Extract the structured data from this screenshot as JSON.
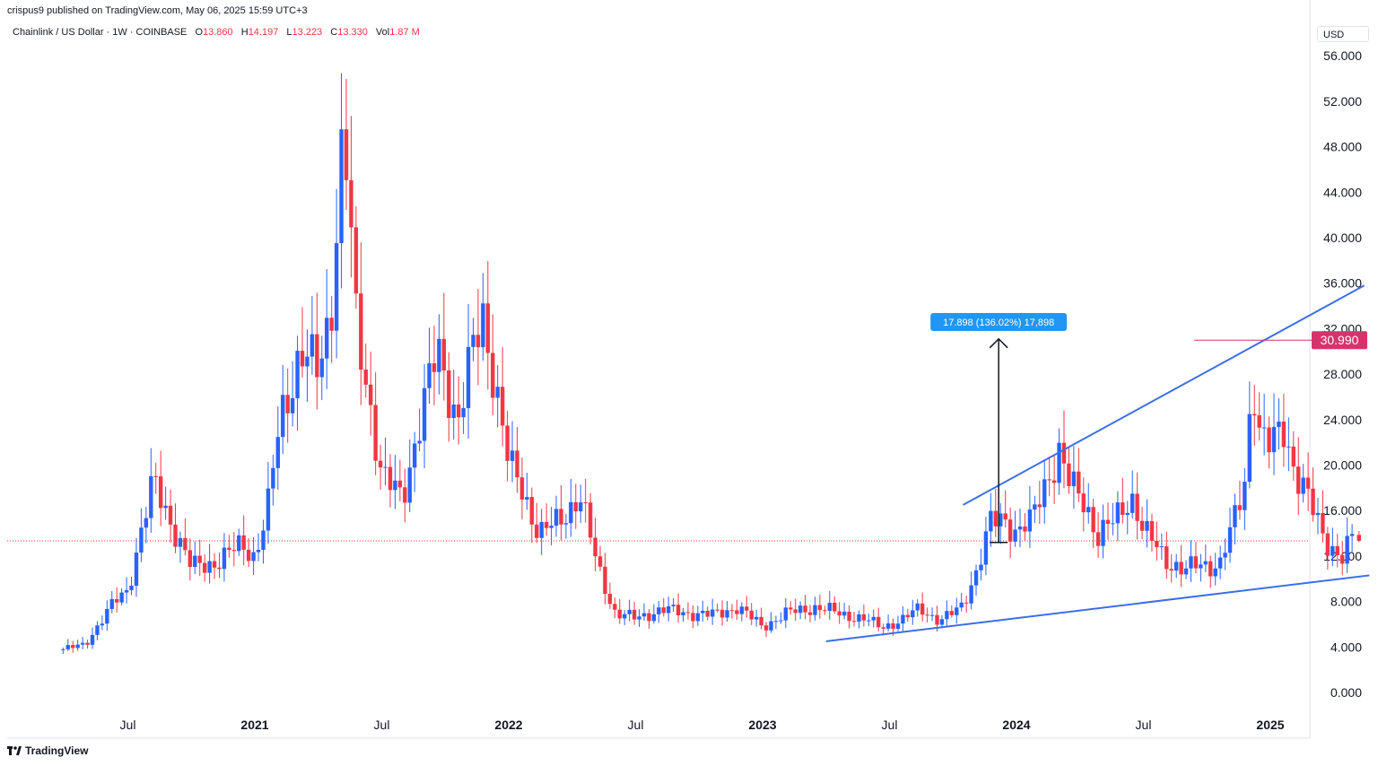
{
  "header": {
    "published": "crispus9 published on TradingView.com, May 06, 2025 15:59 UTC+3"
  },
  "legend": {
    "symbol": "Chainlink / US Dollar · 1W · COINBASE",
    "open_label": "O",
    "open": "13.860",
    "high_label": "H",
    "high": "14.197",
    "low_label": "L",
    "low": "13.223",
    "close_label": "C",
    "close": "13.330",
    "vol_label": "Vol",
    "vol": "1.87 M"
  },
  "currency": "USD",
  "footer": {
    "brand": "TradingView"
  },
  "colors": {
    "up": "#2962ff",
    "down": "#f23645",
    "trendline": "#3b6fe8",
    "level": "#d6336c",
    "measure_box": "#2196f3"
  },
  "chart_data": {
    "type": "candlestick",
    "ylim": [
      -1,
      57
    ],
    "y_ticks": [
      "56.000",
      "52.000",
      "48.000",
      "44.000",
      "40.000",
      "36.000",
      "32.000",
      "28.000",
      "24.000",
      "20.000",
      "16.000",
      "12.000",
      "8.000",
      "4.000",
      "0.000"
    ],
    "x_ticks": [
      {
        "label": "Jul",
        "t": 2020.5,
        "bold": false
      },
      {
        "label": "2021",
        "t": 2021.0,
        "bold": true
      },
      {
        "label": "Jul",
        "t": 2021.5,
        "bold": false
      },
      {
        "label": "2022",
        "t": 2022.0,
        "bold": true
      },
      {
        "label": "Jul",
        "t": 2022.5,
        "bold": false
      },
      {
        "label": "2023",
        "t": 2023.0,
        "bold": true
      },
      {
        "label": "Jul",
        "t": 2023.5,
        "bold": false
      },
      {
        "label": "2024",
        "t": 2024.0,
        "bold": true
      },
      {
        "label": "Jul",
        "t": 2024.5,
        "bold": false
      },
      {
        "label": "2025",
        "t": 2025.0,
        "bold": true
      }
    ],
    "price_anchors": [
      [
        2020.25,
        3.8
      ],
      [
        2020.33,
        4.2
      ],
      [
        2020.4,
        6.5
      ],
      [
        2020.45,
        8.0
      ],
      [
        2020.5,
        9.0
      ],
      [
        2020.55,
        14.0
      ],
      [
        2020.6,
        18.5
      ],
      [
        2020.68,
        14.5
      ],
      [
        2020.75,
        11.0
      ],
      [
        2020.85,
        11.5
      ],
      [
        2020.95,
        13.0
      ],
      [
        2021.0,
        12.0
      ],
      [
        2021.05,
        16.0
      ],
      [
        2021.1,
        24.0
      ],
      [
        2021.18,
        30.0
      ],
      [
        2021.25,
        28.0
      ],
      [
        2021.3,
        34.0
      ],
      [
        2021.35,
        50.0
      ],
      [
        2021.4,
        32.0
      ],
      [
        2021.45,
        26.0
      ],
      [
        2021.5,
        19.0
      ],
      [
        2021.58,
        17.0
      ],
      [
        2021.65,
        24.0
      ],
      [
        2021.72,
        30.0
      ],
      [
        2021.8,
        24.0
      ],
      [
        2021.86,
        30.0
      ],
      [
        2021.9,
        33.0
      ],
      [
        2021.95,
        27.0
      ],
      [
        2022.0,
        20.0
      ],
      [
        2022.05,
        18.0
      ],
      [
        2022.12,
        14.0
      ],
      [
        2022.2,
        15.0
      ],
      [
        2022.28,
        17.5
      ],
      [
        2022.35,
        11.0
      ],
      [
        2022.42,
        7.0
      ],
      [
        2022.5,
        6.5
      ],
      [
        2022.6,
        7.3
      ],
      [
        2022.7,
        7.0
      ],
      [
        2022.8,
        6.8
      ],
      [
        2022.9,
        7.5
      ],
      [
        2023.0,
        5.8
      ],
      [
        2023.1,
        7.0
      ],
      [
        2023.2,
        7.5
      ],
      [
        2023.3,
        7.0
      ],
      [
        2023.4,
        6.4
      ],
      [
        2023.47,
        5.8
      ],
      [
        2023.55,
        6.3
      ],
      [
        2023.62,
        7.5
      ],
      [
        2023.7,
        6.2
      ],
      [
        2023.78,
        7.5
      ],
      [
        2023.85,
        11.0
      ],
      [
        2023.9,
        15.0
      ],
      [
        2023.95,
        15.5
      ],
      [
        2024.0,
        14.0
      ],
      [
        2024.06,
        15.0
      ],
      [
        2024.1,
        18.0
      ],
      [
        2024.17,
        21.0
      ],
      [
        2024.2,
        18.5
      ],
      [
        2024.27,
        17.0
      ],
      [
        2024.32,
        13.5
      ],
      [
        2024.38,
        15.0
      ],
      [
        2024.45,
        17.5
      ],
      [
        2024.5,
        14.0
      ],
      [
        2024.55,
        13.0
      ],
      [
        2024.6,
        11.5
      ],
      [
        2024.66,
        10.5
      ],
      [
        2024.72,
        11.5
      ],
      [
        2024.8,
        11.0
      ],
      [
        2024.85,
        14.5
      ],
      [
        2024.9,
        19.0
      ],
      [
        2024.93,
        28.0
      ],
      [
        2024.96,
        22.0
      ],
      [
        2025.0,
        21.5
      ],
      [
        2025.05,
        24.0
      ],
      [
        2025.1,
        19.0
      ],
      [
        2025.17,
        16.0
      ],
      [
        2025.22,
        13.5
      ],
      [
        2025.28,
        11.5
      ],
      [
        2025.32,
        13.5
      ],
      [
        2025.35,
        13.33
      ]
    ],
    "last_candle": {
      "open": 13.86,
      "high": 14.197,
      "low": 13.223,
      "close": 13.33
    },
    "close_line": 13.33,
    "trendlines": [
      {
        "from": [
          2023.25,
          4.5
        ],
        "to": [
          2025.39,
          10.3
        ]
      },
      {
        "from": [
          2023.79,
          16.5
        ],
        "to": [
          2025.37,
          35.8
        ]
      }
    ],
    "level": {
      "from_t": 2024.7,
      "to_t": 2025.42,
      "value": 30.99,
      "label": "30.990"
    },
    "measure": {
      "t": 2023.93,
      "from": 13.2,
      "to": 31.1,
      "label": "17.898 (136.02%) 17,898"
    }
  }
}
